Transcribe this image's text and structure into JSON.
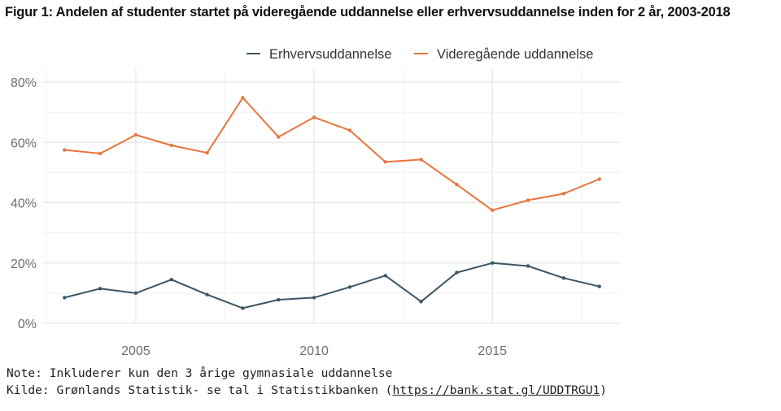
{
  "title": "Figur 1: Andelen af studenter startet på videregående uddannelse eller erhvervsuddannelse inden for 2 år, 2003-2018",
  "note": "Note: Inkluderer kun den 3 årige gymnasiale uddannelse",
  "source": {
    "prefix": "Kilde: Grønlands Statistik- se tal i Statistikbanken (",
    "link": "https://bank.stat.gl/UDDTRGU1",
    "suffix": ")"
  },
  "colors": {
    "erhverv": "#3b5566",
    "videre": "#e9743d",
    "grid": "#e6e6e6",
    "axis_text": "#6e6e6e"
  },
  "chart_data": {
    "type": "line",
    "x": [
      2003,
      2004,
      2005,
      2006,
      2007,
      2008,
      2009,
      2010,
      2011,
      2012,
      2013,
      2014,
      2015,
      2016,
      2017,
      2018
    ],
    "series": [
      {
        "name": "Erhvervsuddannelse",
        "values": [
          8.5,
          11.5,
          10.0,
          14.5,
          9.5,
          5.0,
          7.8,
          8.5,
          12.0,
          15.8,
          7.2,
          16.8,
          20.0,
          19.0,
          15.0,
          12.2
        ]
      },
      {
        "name": "Videregående uddannelse",
        "values": [
          57.5,
          56.3,
          62.5,
          59.0,
          56.5,
          74.8,
          61.8,
          68.3,
          64.0,
          53.5,
          54.3,
          46.0,
          37.5,
          40.8,
          43.0,
          47.8
        ]
      }
    ],
    "xticks": [
      2005,
      2010,
      2015
    ],
    "xtick_labels": [
      "2005",
      "2010",
      "2015"
    ],
    "yticks": [
      0,
      20,
      40,
      60,
      80
    ],
    "ytick_labels": [
      "0%",
      "20%",
      "40%",
      "60%",
      "80%"
    ],
    "xlim": [
      2002.4,
      2018.6
    ],
    "ylim": [
      0,
      80
    ],
    "grid": true,
    "legend_position": "top-right",
    "xlabel": "",
    "ylabel": ""
  }
}
